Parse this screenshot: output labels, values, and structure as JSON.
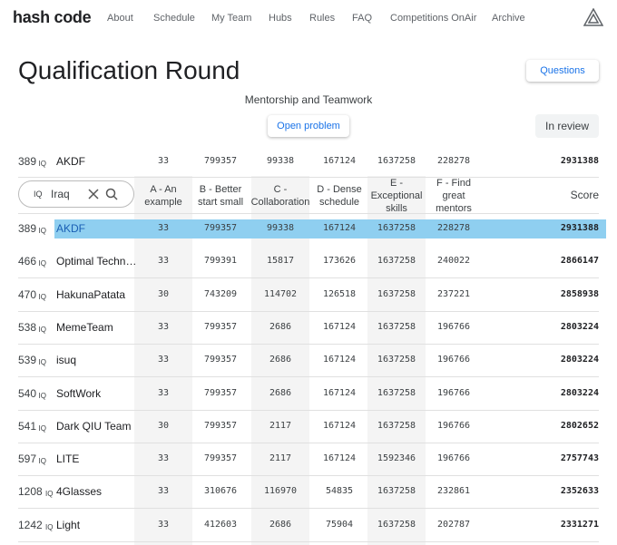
{
  "nav": {
    "logo": "hash code",
    "links": [
      "About",
      "Schedule",
      "My Team",
      "Hubs",
      "Rules",
      "FAQ",
      "Competitions OnAir",
      "Archive"
    ]
  },
  "header": {
    "title": "Qualification Round",
    "questions": "Questions",
    "subtitle": "Mentorship and Teamwork",
    "open_problem": "Open problem",
    "status": "In review"
  },
  "pinned": {
    "rank": 389,
    "country": "IQ",
    "team": "AKDF",
    "scores": [
      33,
      799357,
      99338,
      167124,
      1637258,
      228278
    ],
    "total": 2931388
  },
  "search": {
    "prefix": "IQ",
    "query": "Iraq"
  },
  "table": {
    "headers": [
      "A - An example",
      "B - Better start small",
      "C - Collaboration",
      "D - Dense schedule",
      "E - Exceptional skills",
      "F - Find great mentors"
    ],
    "score_header": "Score",
    "rows": [
      {
        "rank": 389,
        "country": "IQ",
        "team": "AKDF",
        "scores": [
          33,
          799357,
          99338,
          167124,
          1637258,
          228278
        ],
        "total": 2931388
      },
      {
        "rank": 466,
        "country": "IQ",
        "team": "Optimal Techn…",
        "scores": [
          33,
          799391,
          15817,
          173626,
          1637258,
          240022
        ],
        "total": 2866147
      },
      {
        "rank": 470,
        "country": "IQ",
        "team": "HakunaPatata",
        "scores": [
          30,
          743209,
          114702,
          126518,
          1637258,
          237221
        ],
        "total": 2858938
      },
      {
        "rank": 538,
        "country": "IQ",
        "team": "MemeTeam",
        "scores": [
          33,
          799357,
          2686,
          167124,
          1637258,
          196766
        ],
        "total": 2803224
      },
      {
        "rank": 539,
        "country": "IQ",
        "team": "isuq",
        "scores": [
          33,
          799357,
          2686,
          167124,
          1637258,
          196766
        ],
        "total": 2803224
      },
      {
        "rank": 540,
        "country": "IQ",
        "team": "SoftWork",
        "scores": [
          33,
          799357,
          2686,
          167124,
          1637258,
          196766
        ],
        "total": 2803224
      },
      {
        "rank": 541,
        "country": "IQ",
        "team": "Dark QIU Team",
        "scores": [
          30,
          799357,
          2117,
          167124,
          1637258,
          196766
        ],
        "total": 2802652
      },
      {
        "rank": 597,
        "country": "IQ",
        "team": "LITE",
        "scores": [
          33,
          799357,
          2117,
          167124,
          1592346,
          196766
        ],
        "total": 2757743
      },
      {
        "rank": 1208,
        "country": "IQ",
        "team": "4Glasses",
        "scores": [
          33,
          310676,
          116970,
          54835,
          1637258,
          232861
        ],
        "total": 2352633
      },
      {
        "rank": 1242,
        "country": "IQ",
        "team": "Light",
        "scores": [
          33,
          412603,
          2686,
          75904,
          1637258,
          202787
        ],
        "total": 2331271
      }
    ]
  }
}
